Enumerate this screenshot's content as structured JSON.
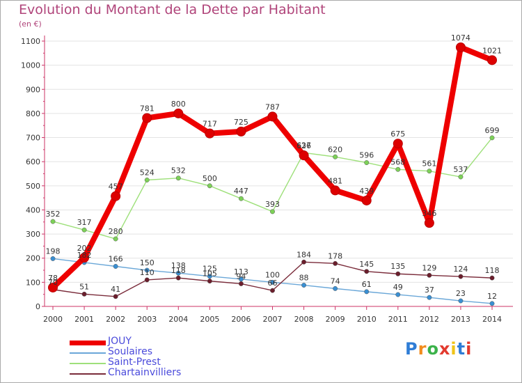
{
  "title": "Evolution du Montant de la Dette par Habitant",
  "unit": "(en €)",
  "brand": {
    "text": "Proxiti",
    "letter_colors": [
      "#2f7dd6",
      "#f28c1d",
      "#3bb24a",
      "#e23a2e",
      "#f0c419",
      "#2f7dd6",
      "#e23a2e"
    ]
  },
  "chart_data": {
    "type": "line",
    "title": "Evolution du Montant de la Dette par Habitant",
    "ylabel": "(en €)",
    "xlabel": "",
    "x": [
      2000,
      2001,
      2002,
      2003,
      2004,
      2005,
      2006,
      2007,
      2008,
      2009,
      2010,
      2011,
      2012,
      2013,
      2014
    ],
    "x_labels": [
      "2000",
      "2001",
      "2002",
      "2003",
      "2004",
      "2005",
      "2006",
      "2007",
      "2008",
      "2009",
      "2010",
      "2011",
      "2012",
      "2013",
      "2014"
    ],
    "ylim": [
      0,
      1100
    ],
    "y_ticks": [
      0,
      100,
      200,
      300,
      400,
      500,
      600,
      700,
      800,
      900,
      1000,
      1100
    ],
    "y_tick_labels": [
      "0",
      "100",
      "200",
      "300",
      "400",
      "500",
      "600",
      "700",
      "800",
      "900",
      "1000",
      "1100"
    ],
    "grid": "horizontal",
    "legend": "bottom-left",
    "series": [
      {
        "name": "JOUY",
        "color": "#ee0000",
        "marker": "#dd0000",
        "emphasis": true,
        "values": [
          78,
          202,
          457,
          781,
          800,
          717,
          725,
          787,
          626,
          481,
          439,
          675,
          346,
          1074,
          1021
        ],
        "labels": [
          "78",
          "202",
          "457",
          "781",
          "800",
          "717",
          "725",
          "787",
          "626",
          "481",
          "439",
          "675",
          "346",
          "1074",
          "1021"
        ]
      },
      {
        "name": "Soulaires",
        "color": "#6aa7d8",
        "marker": "#3a8fd2",
        "values": [
          198,
          182,
          166,
          150,
          138,
          125,
          113,
          100,
          88,
          74,
          61,
          49,
          37,
          23,
          12
        ],
        "labels": [
          "198",
          "182",
          "166",
          "150",
          "138",
          "125",
          "113",
          "100",
          "88",
          "74",
          "61",
          "49",
          "37",
          "23",
          "12"
        ]
      },
      {
        "name": "Saint-Prest",
        "color": "#9ee07a",
        "marker": "#7dd158",
        "values": [
          352,
          317,
          280,
          524,
          532,
          500,
          447,
          393,
          637,
          620,
          596,
          568,
          561,
          537,
          699
        ],
        "labels": [
          "352",
          "317",
          "280",
          "524",
          "532",
          "500",
          "447",
          "393",
          "637",
          "620",
          "596",
          "568",
          "561",
          "537",
          "699"
        ]
      },
      {
        "name": "Chartainvilliers",
        "color": "#7a2b3a",
        "marker": "#6b1e2c",
        "values": [
          70,
          51,
          41,
          110,
          118,
          105,
          94,
          66,
          184,
          178,
          145,
          135,
          129,
          124,
          118
        ],
        "labels": [
          "70",
          "51",
          "41",
          "110",
          "118",
          "105",
          "94",
          "66",
          "184",
          "178",
          "145",
          "135",
          "129",
          "124",
          "118"
        ]
      }
    ]
  }
}
